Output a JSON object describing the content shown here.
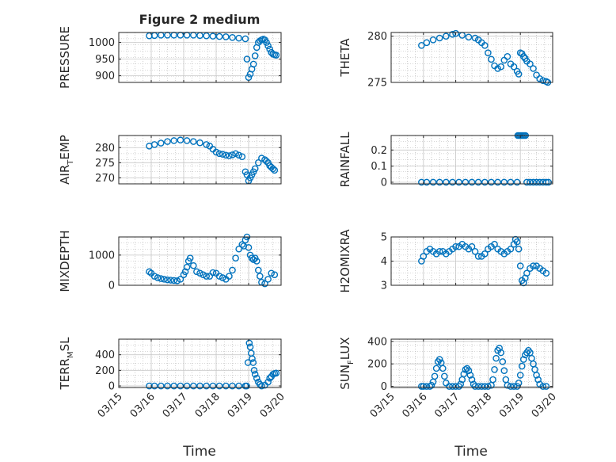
{
  "figure": {
    "title": "Figure 2 medium",
    "xlabel": "Time",
    "marker_color": "#0072BD",
    "xtick_labels": [
      "03/15",
      "03/16",
      "03/17",
      "03/18",
      "03/19",
      "03/20"
    ]
  },
  "chart_data": [
    {
      "type": "scatter",
      "name": "pressure",
      "ylabel_main": "PRESSURE",
      "ylabel_sub": "",
      "ylabel_tail": "",
      "ylim": [
        880,
        1030
      ],
      "yticks": [
        900,
        950,
        1000
      ],
      "ytick_labels": [
        "900",
        "950",
        "1000"
      ],
      "x": [
        15.94,
        16.1,
        16.3,
        16.5,
        16.7,
        16.9,
        17.1,
        17.3,
        17.5,
        17.7,
        17.9,
        18.1,
        18.3,
        18.5,
        18.7,
        18.9,
        18.95,
        19.0,
        19.05,
        19.1,
        19.15,
        19.2,
        19.25,
        19.3,
        19.35,
        19.4,
        19.45,
        19.5,
        19.55,
        19.6,
        19.65,
        19.7,
        19.75,
        19.8,
        19.85
      ],
      "y": [
        1020,
        1021,
        1022,
        1022,
        1022,
        1022,
        1022,
        1022,
        1021,
        1020,
        1019,
        1018,
        1017,
        1015,
        1013,
        1011,
        950,
        895,
        905,
        920,
        935,
        960,
        985,
        1000,
        1005,
        1008,
        1010,
        1008,
        1000,
        990,
        980,
        970,
        965,
        963,
        962
      ]
    },
    {
      "type": "scatter",
      "name": "theta",
      "ylabel_main": "THETA",
      "ylabel_sub": "",
      "ylabel_tail": "",
      "ylim": [
        275,
        280.4
      ],
      "yticks": [
        275,
        280
      ],
      "ytick_labels": [
        "275",
        "280"
      ],
      "x": [
        15.94,
        16.1,
        16.3,
        16.5,
        16.7,
        16.9,
        17.0,
        17.2,
        17.4,
        17.6,
        17.7,
        17.8,
        17.9,
        18.0,
        18.1,
        18.2,
        18.3,
        18.4,
        18.5,
        18.6,
        18.7,
        18.8,
        18.9,
        18.95,
        19.0,
        19.05,
        19.1,
        19.15,
        19.2,
        19.3,
        19.4,
        19.5,
        19.6,
        19.7,
        19.8,
        19.85
      ],
      "y": [
        279.0,
        279.3,
        279.6,
        279.8,
        280.0,
        280.2,
        280.3,
        280.1,
        279.9,
        279.8,
        279.6,
        279.3,
        279.0,
        278.2,
        277.5,
        276.8,
        276.5,
        276.7,
        277.4,
        277.8,
        277.0,
        276.7,
        276.2,
        275.9,
        278.2,
        278.1,
        277.8,
        277.6,
        277.3,
        277.0,
        276.5,
        275.8,
        275.4,
        275.2,
        275.1,
        275.0
      ]
    },
    {
      "type": "scatter",
      "name": "air_temp",
      "ylabel_main": "AIR",
      "ylabel_sub": "T",
      "ylabel_tail": "EMP",
      "ylim": [
        268,
        284
      ],
      "yticks": [
        270,
        275,
        280
      ],
      "ytick_labels": [
        "270",
        "275",
        "280"
      ],
      "x": [
        15.94,
        16.1,
        16.3,
        16.5,
        16.7,
        16.9,
        17.1,
        17.3,
        17.5,
        17.7,
        17.8,
        17.9,
        18.0,
        18.1,
        18.2,
        18.3,
        18.4,
        18.5,
        18.6,
        18.7,
        18.8,
        18.9,
        18.95,
        19.0,
        19.05,
        19.1,
        19.15,
        19.2,
        19.3,
        19.4,
        19.5,
        19.55,
        19.6,
        19.65,
        19.7,
        19.75,
        19.8
      ],
      "y": [
        280.5,
        281.0,
        281.5,
        282.0,
        282.3,
        282.5,
        282.3,
        282.0,
        281.6,
        281.0,
        280.5,
        279.5,
        278.5,
        278.0,
        277.8,
        277.5,
        277.3,
        277.6,
        278.0,
        277.5,
        277.0,
        272.0,
        271.0,
        269.0,
        270.0,
        271.0,
        272.0,
        273.0,
        275.0,
        276.5,
        276.0,
        275.5,
        275.0,
        274.0,
        273.5,
        273.0,
        272.5
      ]
    },
    {
      "type": "scatter",
      "name": "rainfall",
      "ylabel_main": "RAINFALL",
      "ylabel_sub": "",
      "ylabel_tail": "",
      "ylim": [
        -0.01,
        0.29
      ],
      "yticks": [
        0,
        0.1,
        0.2
      ],
      "ytick_labels": [
        "0",
        "0.1",
        "0.2"
      ],
      "x": [
        15.94,
        16.1,
        16.3,
        16.5,
        16.7,
        16.9,
        17.1,
        17.3,
        17.5,
        17.7,
        17.9,
        18.1,
        18.3,
        18.5,
        18.7,
        18.9,
        18.92,
        18.96,
        19.0,
        19.04,
        19.08,
        19.12,
        19.16,
        19.2,
        19.3,
        19.4,
        19.5,
        19.6,
        19.7,
        19.8,
        19.87
      ],
      "y": [
        0,
        0,
        0,
        0,
        0,
        0,
        0,
        0,
        0,
        0,
        0,
        0,
        0,
        0,
        0,
        0,
        0.29,
        0.29,
        0.29,
        0.29,
        0.29,
        0.29,
        0.29,
        0,
        0,
        0,
        0,
        0,
        0,
        0,
        0
      ]
    },
    {
      "type": "scatter",
      "name": "mixdepth",
      "ylabel_main": "MIXDEPTH",
      "ylabel_sub": "",
      "ylabel_tail": "",
      "ylim": [
        0,
        1600
      ],
      "yticks": [
        0,
        1000
      ],
      "ytick_labels": [
        "0",
        "1000"
      ],
      "x": [
        15.94,
        16.0,
        16.1,
        16.2,
        16.3,
        16.4,
        16.5,
        16.6,
        16.7,
        16.8,
        16.9,
        17.0,
        17.05,
        17.1,
        17.15,
        17.2,
        17.3,
        17.4,
        17.5,
        17.6,
        17.7,
        17.8,
        17.9,
        18.0,
        18.1,
        18.2,
        18.3,
        18.4,
        18.5,
        18.6,
        18.7,
        18.8,
        18.85,
        18.9,
        18.95,
        19.0,
        19.05,
        19.1,
        19.15,
        19.2,
        19.25,
        19.3,
        19.35,
        19.4,
        19.5,
        19.6,
        19.7,
        19.8
      ],
      "y": [
        450,
        400,
        300,
        250,
        220,
        200,
        180,
        170,
        160,
        150,
        200,
        350,
        450,
        600,
        800,
        900,
        650,
        450,
        400,
        350,
        300,
        300,
        420,
        400,
        300,
        250,
        200,
        300,
        500,
        900,
        1200,
        1350,
        1300,
        1500,
        1600,
        1250,
        1000,
        900,
        850,
        900,
        800,
        500,
        300,
        100,
        50,
        200,
        400,
        350
      ]
    },
    {
      "type": "scatter",
      "name": "h2omixra",
      "ylabel_main": "H2OMIXRA",
      "ylabel_sub": "",
      "ylabel_tail": "",
      "ylim": [
        3,
        5
      ],
      "yticks": [
        3,
        4,
        5
      ],
      "ytick_labels": [
        "3",
        "4",
        "5"
      ],
      "x": [
        15.94,
        16.0,
        16.1,
        16.2,
        16.3,
        16.4,
        16.5,
        16.6,
        16.7,
        16.8,
        16.9,
        17.0,
        17.1,
        17.2,
        17.3,
        17.4,
        17.5,
        17.6,
        17.7,
        17.8,
        17.9,
        18.0,
        18.1,
        18.2,
        18.3,
        18.4,
        18.5,
        18.6,
        18.7,
        18.8,
        18.85,
        18.9,
        18.95,
        19.0,
        19.05,
        19.1,
        19.15,
        19.2,
        19.3,
        19.4,
        19.5,
        19.6,
        19.7,
        19.8
      ],
      "y": [
        4.0,
        4.2,
        4.4,
        4.5,
        4.4,
        4.3,
        4.4,
        4.4,
        4.3,
        4.4,
        4.5,
        4.6,
        4.6,
        4.7,
        4.6,
        4.5,
        4.6,
        4.4,
        4.2,
        4.2,
        4.3,
        4.5,
        4.6,
        4.7,
        4.5,
        4.4,
        4.3,
        4.4,
        4.5,
        4.7,
        4.9,
        4.8,
        4.5,
        3.8,
        3.2,
        3.1,
        3.3,
        3.5,
        3.7,
        3.8,
        3.8,
        3.7,
        3.6,
        3.5
      ]
    },
    {
      "type": "scatter",
      "name": "terr_msl",
      "ylabel_main": "TERR",
      "ylabel_sub": "M",
      "ylabel_tail": "SL",
      "ylim": [
        -20,
        600
      ],
      "yticks": [
        0,
        200,
        400
      ],
      "ytick_labels": [
        "0",
        "200",
        "400"
      ],
      "x": [
        15.94,
        16.1,
        16.3,
        16.5,
        16.7,
        16.9,
        17.1,
        17.3,
        17.5,
        17.7,
        17.9,
        18.1,
        18.3,
        18.5,
        18.7,
        18.9,
        18.94,
        18.98,
        19.02,
        19.05,
        19.08,
        19.11,
        19.14,
        19.17,
        19.2,
        19.25,
        19.3,
        19.35,
        19.4,
        19.5,
        19.6,
        19.65,
        19.7,
        19.75,
        19.8,
        19.85
      ],
      "y": [
        0,
        0,
        0,
        0,
        0,
        0,
        0,
        0,
        0,
        0,
        0,
        0,
        0,
        0,
        0,
        0,
        0,
        300,
        550,
        500,
        420,
        350,
        300,
        200,
        150,
        100,
        50,
        20,
        0,
        10,
        50,
        100,
        120,
        150,
        160,
        165
      ]
    },
    {
      "type": "scatter",
      "name": "sun_flux",
      "ylabel_main": "SUN",
      "ylabel_sub": "F",
      "ylabel_tail": "LUX",
      "ylim": [
        -10,
        420
      ],
      "yticks": [
        0,
        200,
        400
      ],
      "ytick_labels": [
        "0",
        "200",
        "400"
      ],
      "x": [
        15.94,
        16.0,
        16.1,
        16.2,
        16.25,
        16.3,
        16.35,
        16.4,
        16.45,
        16.5,
        16.55,
        16.6,
        16.65,
        16.7,
        16.8,
        16.9,
        17.0,
        17.1,
        17.15,
        17.2,
        17.25,
        17.3,
        17.35,
        17.4,
        17.45,
        17.5,
        17.55,
        17.6,
        17.7,
        17.8,
        17.9,
        18.0,
        18.1,
        18.15,
        18.2,
        18.25,
        18.3,
        18.35,
        18.4,
        18.45,
        18.5,
        18.55,
        18.6,
        18.7,
        18.8,
        18.9,
        18.95,
        19.0,
        19.05,
        19.1,
        19.15,
        19.2,
        19.25,
        19.3,
        19.35,
        19.4,
        19.45,
        19.5,
        19.55,
        19.6,
        19.7,
        19.8
      ],
      "y": [
        0,
        0,
        0,
        0,
        10,
        40,
        90,
        160,
        220,
        240,
        210,
        160,
        90,
        30,
        0,
        0,
        0,
        0,
        20,
        60,
        110,
        150,
        160,
        140,
        100,
        60,
        20,
        0,
        0,
        0,
        0,
        0,
        10,
        60,
        150,
        250,
        320,
        340,
        300,
        220,
        140,
        60,
        10,
        0,
        0,
        0,
        30,
        100,
        180,
        240,
        280,
        300,
        320,
        300,
        250,
        200,
        150,
        100,
        60,
        20,
        0,
        0
      ]
    }
  ]
}
